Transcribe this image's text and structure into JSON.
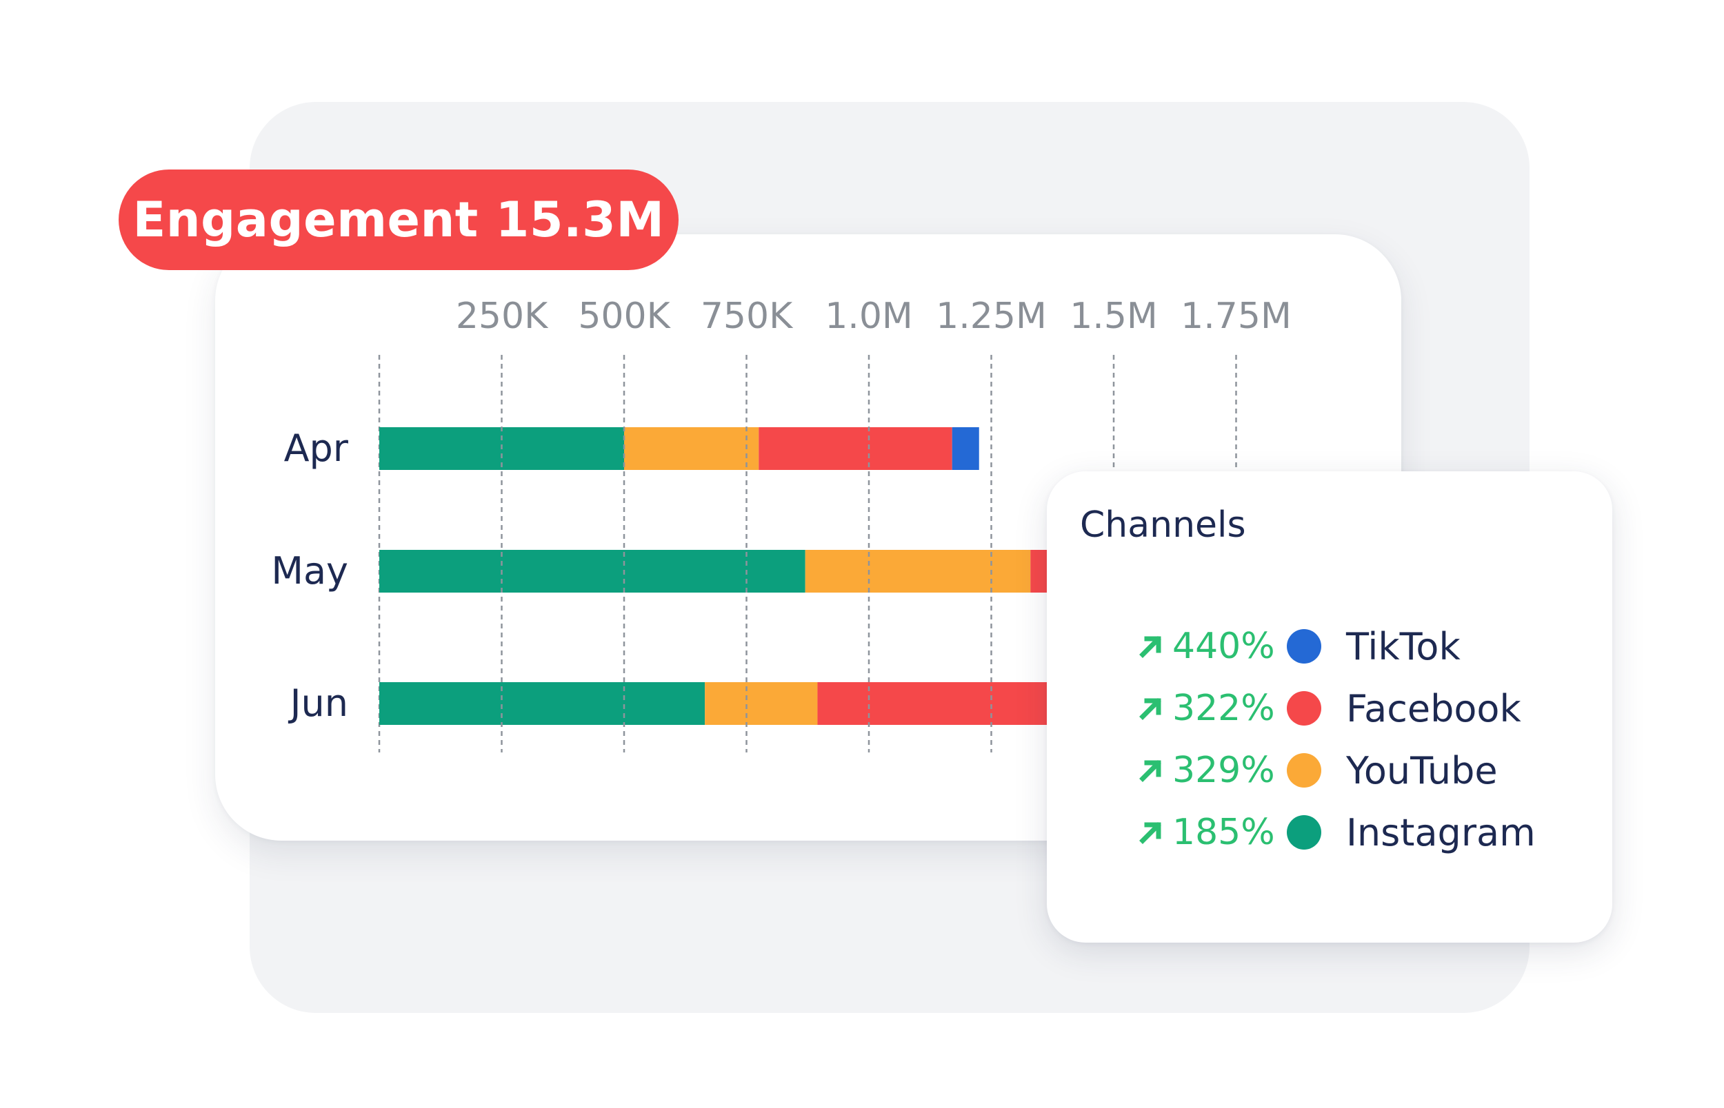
{
  "engagement": {
    "label": "Engagement 15.3M"
  },
  "chart_data": {
    "type": "bar",
    "orientation": "horizontal",
    "stacked": true,
    "title": "Engagement 15.3M",
    "categories": [
      "Apr",
      "May",
      "Jun"
    ],
    "series": [
      {
        "name": "Instagram",
        "color": "#0c9f7d",
        "values": [
          500000,
          870000,
          665000
        ]
      },
      {
        "name": "YouTube",
        "color": "#fba937",
        "values": [
          275000,
          460000,
          230000
        ]
      },
      {
        "name": "Facebook",
        "color": "#f5484a",
        "values": [
          395000,
          40000,
          470000
        ]
      },
      {
        "name": "TikTok",
        "color": "#2469d5",
        "values": [
          55000,
          0,
          0
        ]
      }
    ],
    "x_ticks": [
      "250K",
      "500K",
      "750K",
      "1.0M",
      "1.25M",
      "1.5M",
      "1.75M"
    ],
    "x_tick_values": [
      250000,
      500000,
      750000,
      1000000,
      1250000,
      1500000,
      1750000
    ],
    "xlim": [
      0,
      1750000
    ],
    "grid": "vertical dashed",
    "legend": "overlay panel, right"
  },
  "channels_panel": {
    "title": "Channels",
    "items": [
      {
        "change": "440%",
        "name": "TikTok",
        "color": "#2469d5"
      },
      {
        "change": "322%",
        "name": "Facebook",
        "color": "#f5484a"
      },
      {
        "change": "329%",
        "name": "YouTube",
        "color": "#fba937"
      },
      {
        "change": "185%",
        "name": "Instagram",
        "color": "#0c9f7d"
      }
    ],
    "trend_icon": "arrow-up-right-icon",
    "trend_color": "#2bbf71"
  }
}
